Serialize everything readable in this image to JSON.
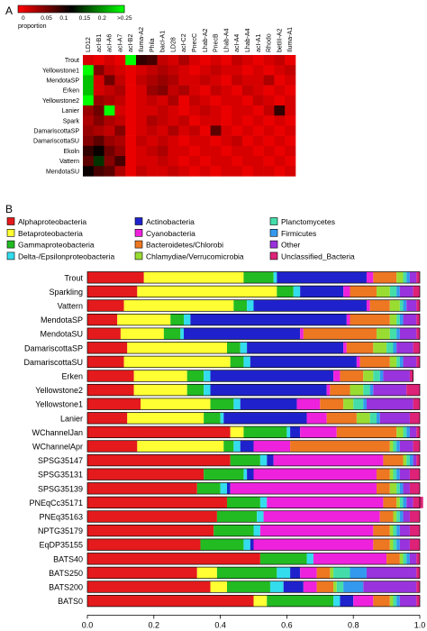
{
  "panels": {
    "a_label": "A",
    "b_label": "B"
  },
  "chart_data": [
    {
      "type": "heatmap",
      "panel": "A",
      "color_scale": {
        "ticks": [
          "0",
          "0.05",
          "0.1",
          "0.15",
          "0.2",
          ">0.25"
        ],
        "label": "proportion",
        "colors": [
          "#ff0000",
          "#000000",
          "#00ff00"
        ]
      },
      "columns": [
        "LD12",
        "acI-B1",
        "acI-A6",
        "acI-A7",
        "acI-B2",
        "Iluma-A2",
        "Phila",
        "bacI-A1",
        "LD28",
        "acI-C2",
        "PnecC",
        "Lhab-A2",
        "PnecB",
        "Lhab-A4",
        "acI-A4",
        "Lhab-A4",
        "acI-A1",
        "Rhodo",
        "betIII-A2",
        "Iluma-A1"
      ],
      "rows": [
        "Trout",
        "Yellowstone1",
        "MendotaSP",
        "Erken",
        "Yellowstone2",
        "Lanier",
        "Spark",
        "DamariscottaSP",
        "DamariscottaSU",
        "Ekoln",
        "Vattern",
        "MendotaSU"
      ],
      "values": [
        [
          0.02,
          0.01,
          0.02,
          0.01,
          0.25,
          0.1,
          0.09,
          0.03,
          0.02,
          0.04,
          0.02,
          0.01,
          0.02,
          0.01,
          0.03,
          0.02,
          0.01,
          0.02,
          0.03,
          0.01
        ],
        [
          0.25,
          0.06,
          0.03,
          0.02,
          0.01,
          0.02,
          0.03,
          0.04,
          0.03,
          0.02,
          0.01,
          0.02,
          0.03,
          0.02,
          0.02,
          0.01,
          0.02,
          0.01,
          0.02,
          0.03
        ],
        [
          0.22,
          0.02,
          0.07,
          0.03,
          0.01,
          0.03,
          0.04,
          0.05,
          0.04,
          0.02,
          0.02,
          0.03,
          0.02,
          0.01,
          0.03,
          0.02,
          0.02,
          0.04,
          0.01,
          0.02
        ],
        [
          0.22,
          0.02,
          0.03,
          0.04,
          0.01,
          0.02,
          0.05,
          0.06,
          0.03,
          0.04,
          0.02,
          0.01,
          0.03,
          0.02,
          0.01,
          0.03,
          0.02,
          0.01,
          0.02,
          0.01
        ],
        [
          0.25,
          0.05,
          0.04,
          0.03,
          0.01,
          0.02,
          0.03,
          0.02,
          0.04,
          0.01,
          0.03,
          0.02,
          0.01,
          0.02,
          0.02,
          0.01,
          0.03,
          0.02,
          0.01,
          0.02
        ],
        [
          0.05,
          0.07,
          0.25,
          0.02,
          0.01,
          0.02,
          0.02,
          0.03,
          0.02,
          0.01,
          0.02,
          0.03,
          0.02,
          0.01,
          0.02,
          0.02,
          0.01,
          0.03,
          0.1,
          0.02
        ],
        [
          0.04,
          0.06,
          0.04,
          0.03,
          0.01,
          0.02,
          0.04,
          0.03,
          0.02,
          0.03,
          0.01,
          0.02,
          0.02,
          0.01,
          0.02,
          0.01,
          0.02,
          0.01,
          0.02,
          0.01
        ],
        [
          0.05,
          0.04,
          0.03,
          0.06,
          0.01,
          0.02,
          0.03,
          0.02,
          0.04,
          0.02,
          0.03,
          0.01,
          0.08,
          0.02,
          0.01,
          0.02,
          0.01,
          0.02,
          0.01,
          0.02
        ],
        [
          0.06,
          0.08,
          0.05,
          0.04,
          0.01,
          0.03,
          0.02,
          0.03,
          0.02,
          0.01,
          0.02,
          0.02,
          0.01,
          0.02,
          0.03,
          0.01,
          0.02,
          0.01,
          0.02,
          0.01
        ],
        [
          0.1,
          0.12,
          0.07,
          0.05,
          0.01,
          0.02,
          0.03,
          0.04,
          0.02,
          0.02,
          0.01,
          0.02,
          0.02,
          0.01,
          0.02,
          0.02,
          0.01,
          0.02,
          0.01,
          0.02
        ],
        [
          0.08,
          0.15,
          0.06,
          0.09,
          0.01,
          0.02,
          0.02,
          0.03,
          0.02,
          0.01,
          0.02,
          0.01,
          0.02,
          0.02,
          0.01,
          0.02,
          0.02,
          0.01,
          0.02,
          0.01
        ],
        [
          0.12,
          0.09,
          0.08,
          0.04,
          0.01,
          0.03,
          0.02,
          0.02,
          0.03,
          0.02,
          0.01,
          0.02,
          0.01,
          0.02,
          0.02,
          0.01,
          0.02,
          0.02,
          0.01,
          0.02
        ]
      ]
    },
    {
      "type": "bar",
      "stacked": true,
      "orientation": "horizontal",
      "panel": "B",
      "xlim": [
        0,
        1
      ],
      "xticks": [
        "0.0",
        "0.2",
        "0.4",
        "0.6",
        "0.8",
        "1.0"
      ],
      "categories": [
        "Trout",
        "Sparkling",
        "Vattern",
        "MendotaSP",
        "MendotaSU",
        "DamariscottaSP",
        "DamariscottaSU",
        "Erken",
        "Yellowstone2",
        "Yellowstone1",
        "Lanier",
        "WChannelJan",
        "WChannelApr",
        "SPSG35147",
        "SPSG35131",
        "SPSG35139",
        "PNEqCc35171",
        "PNEq35163",
        "NPTG35179",
        "EqDP35155",
        "BATS40",
        "BATS250",
        "BATS200",
        "BATS0"
      ],
      "legend": {
        "placement": "top",
        "entries": [
          {
            "name": "Alphaproteobacteria",
            "color": "#e41a1c"
          },
          {
            "name": "Betaproteobacteria",
            "color": "#ffff33"
          },
          {
            "name": "Gammaproteobacteria",
            "color": "#22bb22"
          },
          {
            "name": "Delta-/Epsilonproteobacteria",
            "color": "#33ddee"
          },
          {
            "name": "Actinobacteria",
            "color": "#1f22cc"
          },
          {
            "name": "Cyanobacteria",
            "color": "#ee22dd"
          },
          {
            "name": "Bacteroidetes/Chlorobi",
            "color": "#ee7722"
          },
          {
            "name": "Chlamydiae/Verrucomicrobia",
            "color": "#99dd33"
          },
          {
            "name": "Planctomycetes",
            "color": "#44ddaa"
          },
          {
            "name": "Firmicutes",
            "color": "#3399ee"
          },
          {
            "name": "Other",
            "color": "#9933dd"
          },
          {
            "name": "Unclassified_Bacteria",
            "color": "#dd2277"
          }
        ]
      },
      "series": [
        {
          "name": "Alphaproteobacteria",
          "values": [
            0.17,
            0.15,
            0.11,
            0.09,
            0.1,
            0.12,
            0.11,
            0.14,
            0.14,
            0.16,
            0.12,
            0.43,
            0.15,
            0.43,
            0.35,
            0.33,
            0.42,
            0.39,
            0.38,
            0.34,
            0.52,
            0.33,
            0.37,
            0.5
          ]
        },
        {
          "name": "Betaproteobacteria",
          "values": [
            0.3,
            0.42,
            0.33,
            0.16,
            0.13,
            0.3,
            0.32,
            0.16,
            0.16,
            0.21,
            0.23,
            0.04,
            0.26,
            0.0,
            0.0,
            0.0,
            0.0,
            0.0,
            0.0,
            0.0,
            0.0,
            0.06,
            0.05,
            0.04
          ]
        },
        {
          "name": "Gammaproteobacteria",
          "values": [
            0.09,
            0.05,
            0.04,
            0.04,
            0.05,
            0.04,
            0.04,
            0.05,
            0.05,
            0.07,
            0.05,
            0.13,
            0.03,
            0.09,
            0.12,
            0.07,
            0.1,
            0.12,
            0.12,
            0.13,
            0.14,
            0.18,
            0.13,
            0.2
          ]
        },
        {
          "name": "Delta-/Epsilonproteobacteria",
          "values": [
            0.01,
            0.02,
            0.02,
            0.02,
            0.01,
            0.02,
            0.02,
            0.02,
            0.02,
            0.02,
            0.01,
            0.01,
            0.02,
            0.02,
            0.01,
            0.02,
            0.02,
            0.02,
            0.02,
            0.02,
            0.02,
            0.04,
            0.04,
            0.02
          ]
        },
        {
          "name": "Actinobacteria",
          "values": [
            0.27,
            0.13,
            0.34,
            0.47,
            0.35,
            0.29,
            0.32,
            0.37,
            0.35,
            0.17,
            0.25,
            0.03,
            0.04,
            0.02,
            0.02,
            0.01,
            0.0,
            0.0,
            0.0,
            0.01,
            0.0,
            0.03,
            0.06,
            0.04
          ]
        },
        {
          "name": "Cyanobacteria",
          "values": [
            0.02,
            0.02,
            0.01,
            0.01,
            0.01,
            0.01,
            0.01,
            0.02,
            0.01,
            0.07,
            0.06,
            0.11,
            0.11,
            0.33,
            0.37,
            0.44,
            0.35,
            0.35,
            0.34,
            0.36,
            0.22,
            0.05,
            0.04,
            0.06
          ]
        },
        {
          "name": "Bacteroidetes/Chlorobi",
          "values": [
            0.07,
            0.08,
            0.06,
            0.12,
            0.22,
            0.08,
            0.09,
            0.07,
            0.06,
            0.07,
            0.09,
            0.18,
            0.3,
            0.06,
            0.04,
            0.04,
            0.04,
            0.04,
            0.05,
            0.05,
            0.04,
            0.04,
            0.05,
            0.05
          ]
        },
        {
          "name": "Chlamydiae/Verrucomicrobia",
          "values": [
            0.02,
            0.04,
            0.03,
            0.02,
            0.04,
            0.04,
            0.02,
            0.03,
            0.04,
            0.03,
            0.04,
            0.02,
            0.01,
            0.01,
            0.01,
            0.02,
            0.01,
            0.01,
            0.01,
            0.01,
            0.01,
            0.01,
            0.01,
            0.01
          ]
        },
        {
          "name": "Planctomycetes",
          "values": [
            0.01,
            0.02,
            0.01,
            0.01,
            0.02,
            0.02,
            0.01,
            0.02,
            0.02,
            0.03,
            0.02,
            0.01,
            0.01,
            0.01,
            0.01,
            0.01,
            0.01,
            0.01,
            0.01,
            0.01,
            0.01,
            0.05,
            0.02,
            0.01
          ]
        },
        {
          "name": "Firmicutes",
          "values": [
            0.01,
            0.01,
            0.01,
            0.01,
            0.01,
            0.01,
            0.01,
            0.01,
            0.01,
            0.01,
            0.01,
            0.01,
            0.01,
            0.01,
            0.01,
            0.01,
            0.01,
            0.01,
            0.01,
            0.01,
            0.01,
            0.05,
            0.06,
            0.01
          ]
        },
        {
          "name": "Other",
          "values": [
            0.02,
            0.04,
            0.03,
            0.04,
            0.05,
            0.05,
            0.04,
            0.08,
            0.1,
            0.14,
            0.09,
            0.02,
            0.04,
            0.01,
            0.03,
            0.02,
            0.02,
            0.02,
            0.03,
            0.03,
            0.02,
            0.15,
            0.16,
            0.05
          ]
        },
        {
          "name": "Unclassified_Bacteria",
          "values": [
            0.01,
            0.02,
            0.01,
            0.01,
            0.01,
            0.02,
            0.01,
            0.01,
            0.04,
            0.02,
            0.03,
            0.01,
            0.02,
            0.01,
            0.03,
            0.03,
            0.03,
            0.03,
            0.03,
            0.03,
            0.01,
            0.01,
            0.01,
            0.01
          ]
        }
      ]
    }
  ]
}
